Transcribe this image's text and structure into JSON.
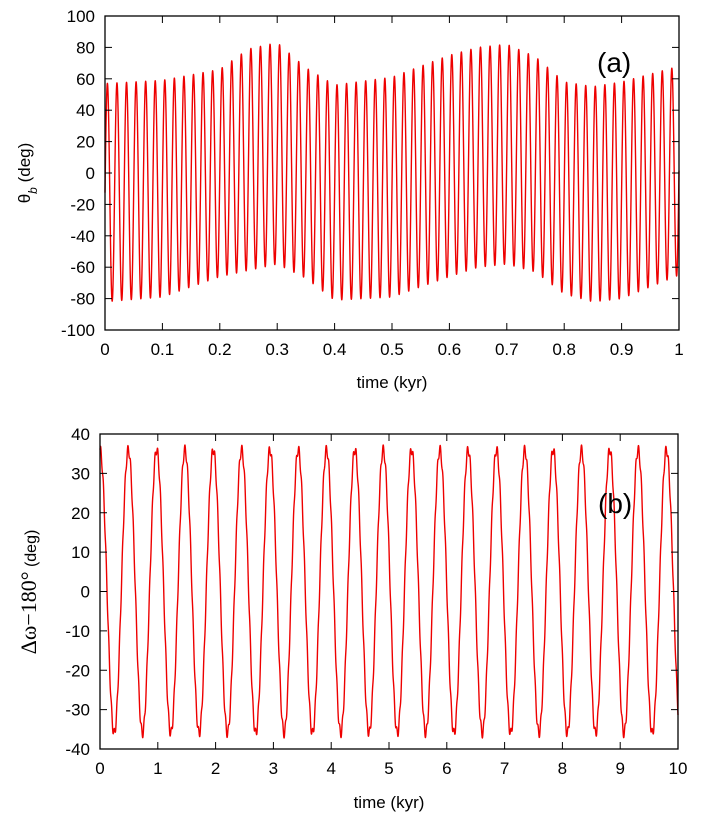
{
  "chart_data": [
    {
      "type": "line",
      "panel_label": "(a)",
      "xlabel": "time (kyr)",
      "ylabel": "θ_b (deg)",
      "xlim": [
        0,
        1
      ],
      "ylim": [
        -100,
        100
      ],
      "xticks": [
        "0",
        "0.1",
        "0.2",
        "0.3",
        "0.4",
        "0.5",
        "0.6",
        "0.7",
        "0.8",
        "0.9",
        "1"
      ],
      "yticks": [
        "-100",
        "-80",
        "-60",
        "-40",
        "-20",
        "0",
        "20",
        "40",
        "60",
        "80",
        "100"
      ],
      "legend": "none",
      "grid": false,
      "series": [
        {
          "color": "#ee0000",
          "oscillation": "libration about 0 deg, about 60 cycles in 0–1 kyr",
          "envelope_time": [
            0,
            0.1,
            0.2,
            0.25,
            0.3,
            0.35,
            0.4,
            0.5,
            0.6,
            0.65,
            0.7,
            0.75,
            0.8,
            0.85,
            0.9,
            1.0
          ],
          "envelope_max": [
            57,
            59,
            66,
            79,
            83,
            67,
            56,
            61,
            75,
            80,
            82,
            74,
            58,
            55,
            58,
            68
          ],
          "envelope_min": [
            -82,
            -79,
            -66,
            -62,
            -58,
            -67,
            -81,
            -79,
            -66,
            -60,
            -58,
            -63,
            -77,
            -82,
            -80,
            -65
          ]
        }
      ]
    },
    {
      "type": "line",
      "panel_label": "(b)",
      "xlabel": "time (kyr)",
      "ylabel": "Δω−180° (deg)",
      "xlim": [
        0,
        10
      ],
      "ylim": [
        -40,
        40
      ],
      "xticks": [
        "0",
        "1",
        "2",
        "3",
        "4",
        "5",
        "6",
        "7",
        "8",
        "9",
        "10"
      ],
      "yticks": [
        "-40",
        "-30",
        "-20",
        "-10",
        "0",
        "10",
        "20",
        "30",
        "40"
      ],
      "legend": "none",
      "grid": false,
      "series": [
        {
          "color": "#ee0000",
          "oscillation": "libration about 0 deg with amplitude about 36 deg, about 21 cycles in 0–10 kyr",
          "amplitude": 36,
          "period_kyr": 0.49,
          "max": 36,
          "min": -36
        }
      ]
    }
  ]
}
